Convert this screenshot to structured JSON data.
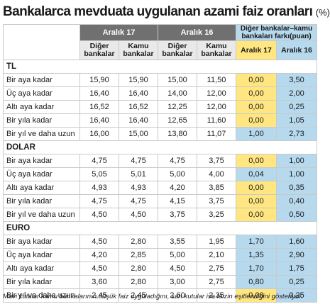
{
  "title": "Bankalarca mevduata uygulanan azami faiz oranları",
  "unit": "(%)",
  "header": {
    "period1": "Aralık 17",
    "period2": "Aralık 16",
    "diff_group_line1": "Diğer bankalar–kamu",
    "diff_group_line2": "bankaları farkı(puan)",
    "other_line1": "Diğer",
    "other_line2": "bankalar",
    "public_line1": "Kamu",
    "public_line2": "bankalar",
    "diff_period1": "Aralık 17",
    "diff_period2": "Aralık 16"
  },
  "sections": [
    {
      "name": "TL",
      "rows": [
        {
          "label": "Bir aya kadar",
          "v": [
            "15,90",
            "15,90",
            "15,00",
            "11,50"
          ],
          "d": [
            "0,00",
            "3,50"
          ],
          "dc": [
            "y",
            "b"
          ]
        },
        {
          "label": "Üç aya kadar",
          "v": [
            "16,40",
            "16,40",
            "14,00",
            "12,00"
          ],
          "d": [
            "0,00",
            "2,00"
          ],
          "dc": [
            "y",
            "b"
          ]
        },
        {
          "label": "Altı aya kadar",
          "v": [
            "16,52",
            "16,52",
            "12,25",
            "12,00"
          ],
          "d": [
            "0,00",
            "0,25"
          ],
          "dc": [
            "y",
            "b"
          ]
        },
        {
          "label": "Bir yıla kadar",
          "v": [
            "16,40",
            "16,40",
            "12,65",
            "11,60"
          ],
          "d": [
            "0,00",
            "1,05"
          ],
          "dc": [
            "y",
            "b"
          ]
        },
        {
          "label": "Bir yıl ve daha uzun",
          "v": [
            "16,00",
            "15,00",
            "13,80",
            "11,07"
          ],
          "d": [
            "1,00",
            "2,73"
          ],
          "dc": [
            "b",
            "b"
          ]
        }
      ]
    },
    {
      "name": "DOLAR",
      "rows": [
        {
          "label": "Bir aya kadar",
          "v": [
            "4,75",
            "4,75",
            "4,75",
            "3,75"
          ],
          "d": [
            "0,00",
            "1,00"
          ],
          "dc": [
            "y",
            "b"
          ]
        },
        {
          "label": "Üç aya kadar",
          "v": [
            "5,05",
            "5,01",
            "5,00",
            "4,00"
          ],
          "d": [
            "0,04",
            "1,00"
          ],
          "dc": [
            "b",
            "b"
          ]
        },
        {
          "label": "Altı aya kadar",
          "v": [
            "4,93",
            "4,93",
            "4,20",
            "3,85"
          ],
          "d": [
            "0,00",
            "0,35"
          ],
          "dc": [
            "y",
            "b"
          ]
        },
        {
          "label": "Bir yıla kadar",
          "v": [
            "4,75",
            "4,75",
            "4,15",
            "3,75"
          ],
          "d": [
            "0,00",
            "0,40"
          ],
          "dc": [
            "y",
            "b"
          ]
        },
        {
          "label": "Bir yıl ve daha uzun",
          "v": [
            "4,50",
            "4,50",
            "3,75",
            "3,25"
          ],
          "d": [
            "0,00",
            "0,50"
          ],
          "dc": [
            "y",
            "b"
          ]
        }
      ]
    },
    {
      "name": "EURO",
      "rows": [
        {
          "label": "Bir aya kadar",
          "v": [
            "4,50",
            "2,80",
            "3,55",
            "1,95"
          ],
          "d": [
            "1,70",
            "1,60"
          ],
          "dc": [
            "b",
            "b"
          ]
        },
        {
          "label": "Üç aya kadar",
          "v": [
            "4,20",
            "2,85",
            "5,00",
            "2,10"
          ],
          "d": [
            "1,35",
            "2,90"
          ],
          "dc": [
            "b",
            "b"
          ]
        },
        {
          "label": "Altı aya kadar",
          "v": [
            "4,50",
            "2,80",
            "4,50",
            "2,75"
          ],
          "d": [
            "1,70",
            "1,75"
          ],
          "dc": [
            "b",
            "b"
          ]
        },
        {
          "label": "Bir yıla kadar",
          "v": [
            "3,60",
            "2,80",
            "3,00",
            "2,75"
          ],
          "d": [
            "0,80",
            "0,25"
          ],
          "dc": [
            "b",
            "b"
          ]
        },
        {
          "label": "Bir yıl ve daha uzun",
          "v": [
            "2,45",
            "2,45",
            "2,60",
            "2,35"
          ],
          "d": [
            "0,00",
            "0,25"
          ],
          "dc": [
            "y",
            "b"
          ]
        }
      ]
    }
  ],
  "footnote": "Mavi kutular kamu bankalarının düşük faiz uyguladığını, sarı kutular ise faizin eşitlendiğini gösteriyor.",
  "colors": {
    "yellow": "#ffe680",
    "blue": "#b7d9ee",
    "header_gray": "#707070"
  }
}
